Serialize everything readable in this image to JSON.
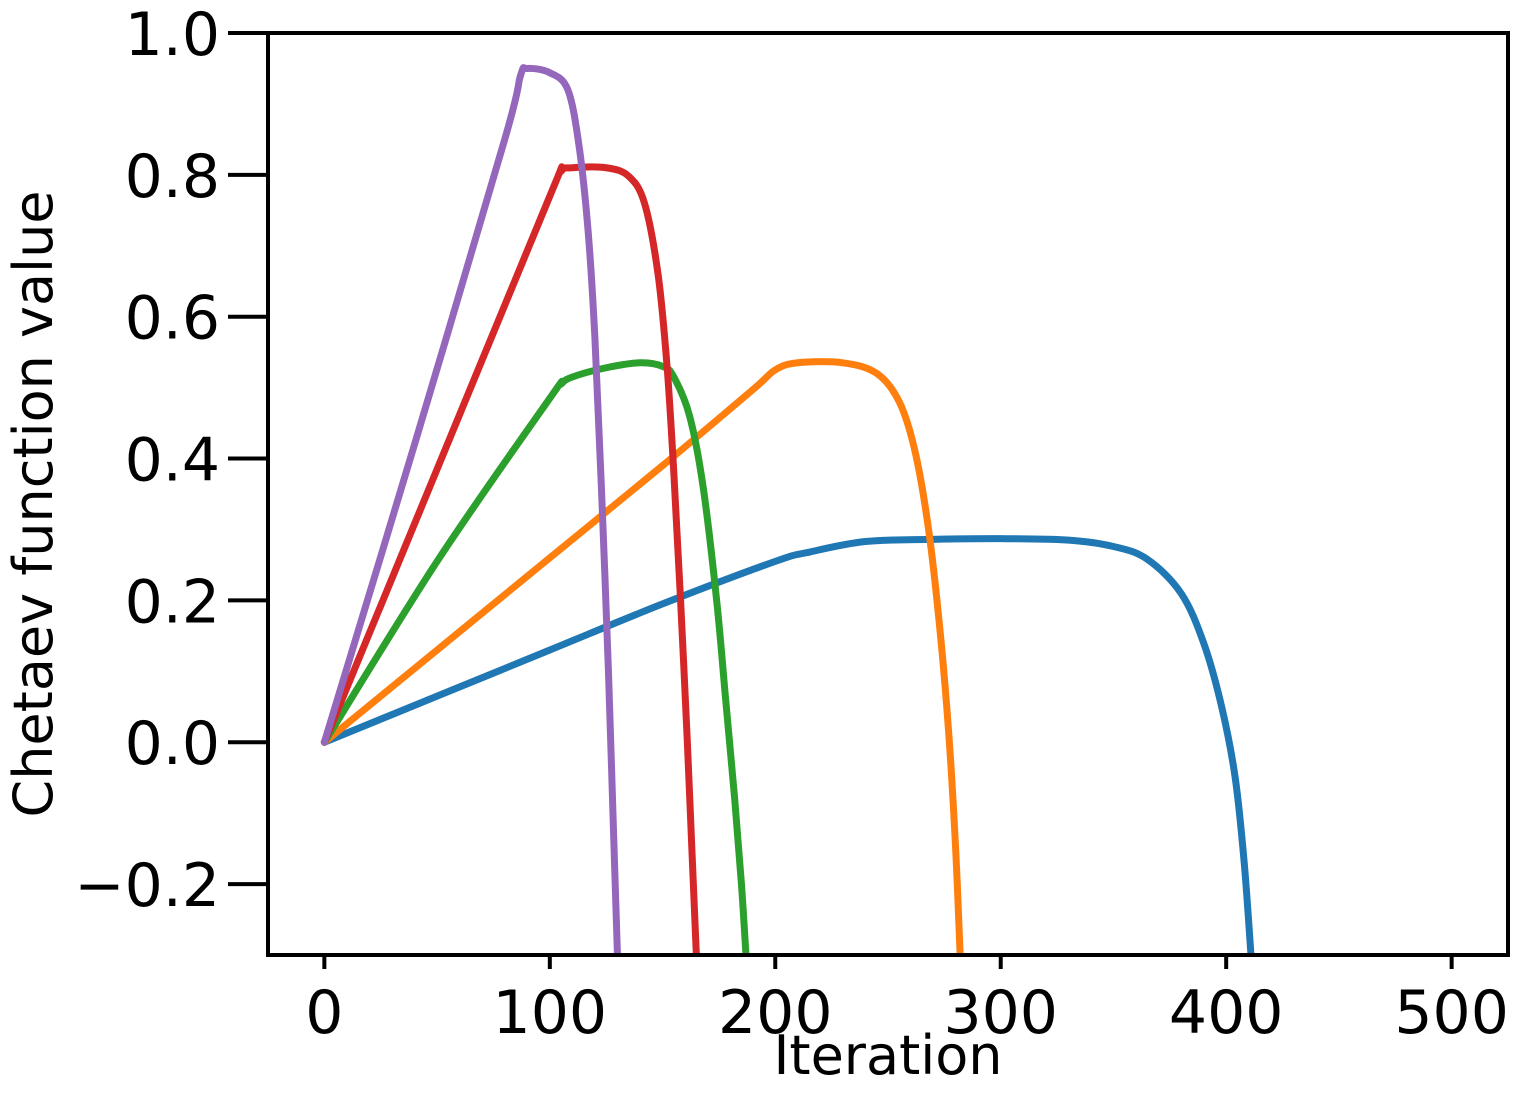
{
  "chart_data": {
    "type": "line",
    "title": "",
    "xlabel": "Iteration",
    "ylabel": "Chetaev function value",
    "xlim": [
      -25,
      525
    ],
    "ylim": [
      -0.3,
      1.0
    ],
    "xticks": [
      0,
      100,
      200,
      300,
      400,
      500
    ],
    "xtick_labels": [
      "0",
      "100",
      "200",
      "300",
      "400",
      "500"
    ],
    "yticks": [
      -0.2,
      0.0,
      0.2,
      0.4,
      0.6,
      0.8,
      1.0
    ],
    "ytick_labels": [
      "−0.2",
      "0.0",
      "0.2",
      "0.4",
      "0.6",
      "0.8",
      "1.0"
    ],
    "grid": false,
    "legend": "none",
    "series": [
      {
        "color": "#1f77b4",
        "x": [
          0,
          50,
          100,
          150,
          200,
          215,
          240,
          270,
          300,
          330,
          350,
          365,
          380,
          390,
          398,
          404,
          408,
          411
        ],
        "y": [
          0.0,
          0.065,
          0.13,
          0.195,
          0.255,
          0.268,
          0.283,
          0.286,
          0.287,
          0.285,
          0.276,
          0.258,
          0.21,
          0.14,
          0.05,
          -0.05,
          -0.17,
          -0.3
        ]
      },
      {
        "color": "#ff7f0e",
        "x": [
          0,
          50,
          100,
          150,
          190,
          200,
          210,
          230,
          245,
          255,
          262,
          268,
          273,
          277,
          280,
          282
        ],
        "y": [
          0.0,
          0.13,
          0.26,
          0.39,
          0.497,
          0.525,
          0.535,
          0.535,
          0.52,
          0.48,
          0.41,
          0.3,
          0.16,
          0.01,
          -0.15,
          -0.3
        ]
      },
      {
        "color": "#2ca02c",
        "x": [
          0,
          50,
          100,
          105,
          110,
          125,
          140,
          150,
          155,
          162,
          168,
          174,
          178,
          182,
          185,
          187
        ],
        "y": [
          0.0,
          0.255,
          0.485,
          0.505,
          0.515,
          0.528,
          0.535,
          0.53,
          0.515,
          0.46,
          0.36,
          0.2,
          0.06,
          -0.08,
          -0.2,
          -0.3
        ]
      },
      {
        "color": "#d62728",
        "x": [
          0,
          50,
          100,
          105,
          110,
          125,
          135,
          142,
          148,
          152,
          155,
          158,
          161,
          163,
          165
        ],
        "y": [
          0.0,
          0.385,
          0.77,
          0.805,
          0.81,
          0.81,
          0.798,
          0.76,
          0.66,
          0.53,
          0.38,
          0.2,
          0.0,
          -0.15,
          -0.3
        ]
      },
      {
        "color": "#9467bd",
        "x": [
          0,
          40,
          80,
          87,
          90,
          100,
          108,
          113,
          117,
          120,
          123,
          126,
          128,
          130
        ],
        "y": [
          0.0,
          0.42,
          0.85,
          0.94,
          0.95,
          0.944,
          0.92,
          0.84,
          0.72,
          0.57,
          0.35,
          0.1,
          -0.1,
          -0.3
        ]
      }
    ]
  }
}
